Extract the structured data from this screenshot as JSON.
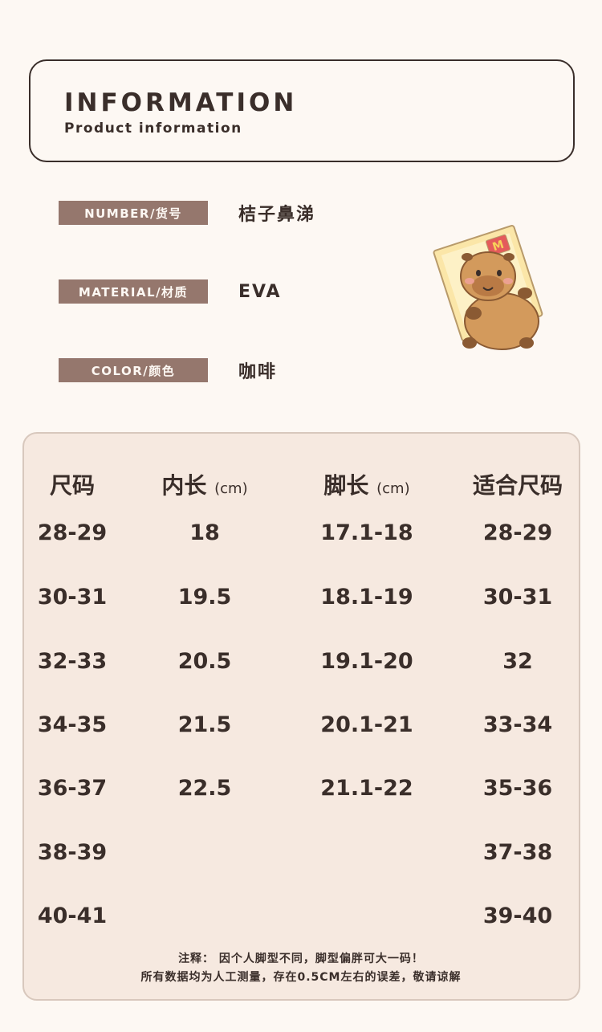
{
  "info": {
    "title": "INFORMATION",
    "subtitle": "Product information"
  },
  "specs": [
    {
      "label": "NUMBER/货号",
      "value": "桔子鼻涕"
    },
    {
      "label": "MATERIAL/材质",
      "value": "EVA"
    },
    {
      "label": "COLOR/颜色",
      "value": "咖啡"
    }
  ],
  "mascot": {
    "icon": "capybara-in-box-icon",
    "box_badge": "M"
  },
  "size_table": {
    "headers": [
      {
        "text": "尺码",
        "unit": ""
      },
      {
        "text": "内长",
        "unit": "(cm)"
      },
      {
        "text": "脚长",
        "unit": "(cm)"
      },
      {
        "text": "适合尺码",
        "unit": ""
      }
    ],
    "rows": [
      [
        "28-29",
        "18",
        "17.1-18",
        "28-29"
      ],
      [
        "30-31",
        "19.5",
        "18.1-19",
        "30-31"
      ],
      [
        "32-33",
        "20.5",
        "19.1-20",
        "32"
      ],
      [
        "34-35",
        "21.5",
        "20.1-21",
        "33-34"
      ],
      [
        "36-37",
        "22.5",
        "21.1-22",
        "35-36"
      ],
      [
        "38-39",
        "",
        "",
        "37-38"
      ],
      [
        "40-41",
        "",
        "",
        "39-40"
      ]
    ]
  },
  "notes": [
    "注释：  因个人脚型不同，脚型偏胖可大一码！",
    "所有数据均为人工测量，存在0.5CM左右的误差，敬请谅解"
  ],
  "colors": {
    "background": "#fdf8f3",
    "label_bg": "#95776d",
    "table_bg": "#f6e9e0",
    "text": "#3a2e2a"
  }
}
